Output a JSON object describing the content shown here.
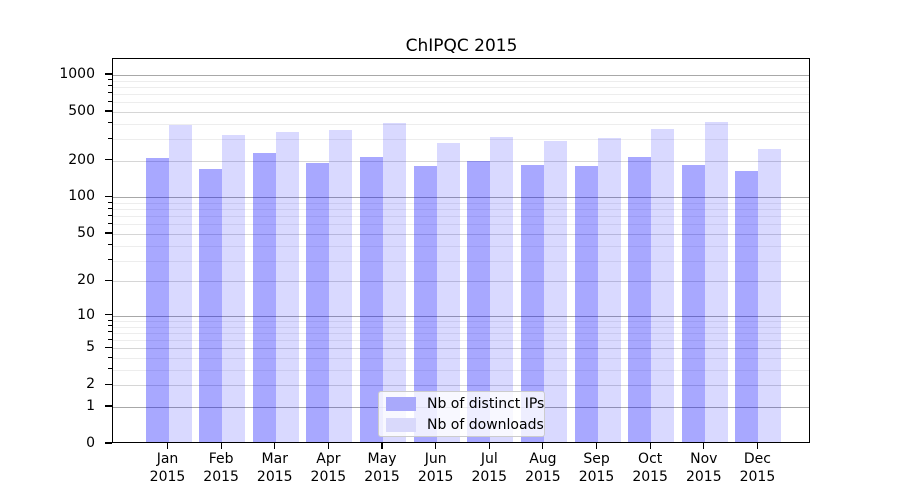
{
  "figure": {
    "background": "#ffffff",
    "text_color": "#000000"
  },
  "chart_data": {
    "type": "bar",
    "title": "ChIPQC 2015",
    "categories": [
      "Jan",
      "Feb",
      "Mar",
      "Apr",
      "May",
      "Jun",
      "Jul",
      "Aug",
      "Sep",
      "Oct",
      "Nov",
      "Dec"
    ],
    "category_year": "2015",
    "series": [
      {
        "name": "Nb of distinct IPs",
        "base_color": "#0000ff",
        "alpha": 0.34,
        "color_over_white": "#a9a9fb",
        "values": [
          210,
          170,
          230,
          190,
          215,
          180,
          200,
          185,
          180,
          215,
          185,
          165
        ]
      },
      {
        "name": "Nb of downloads",
        "base_color": "#0000ff",
        "alpha": 0.15,
        "color_over_white": "#d9d9fb",
        "values": [
          390,
          325,
          345,
          355,
          405,
          280,
          315,
          290,
          305,
          360,
          415,
          250
        ]
      }
    ],
    "xlabel": "",
    "ylabel": "",
    "yscale": "log1p",
    "yticks": [
      0,
      1,
      2,
      5,
      10,
      20,
      50,
      100,
      200,
      500,
      1000
    ],
    "yminorticks": [
      3,
      4,
      6,
      7,
      8,
      9,
      30,
      40,
      60,
      70,
      80,
      90,
      300,
      400,
      600,
      700,
      800,
      900
    ],
    "ylim": [
      0,
      1400
    ],
    "grid": "horizontal major and minor, no vertical",
    "legend": {
      "position": "lower center",
      "entries": [
        "Nb of distinct IPs",
        "Nb of downloads"
      ]
    }
  }
}
